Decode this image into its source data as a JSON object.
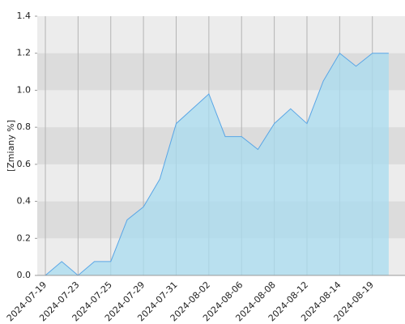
{
  "chart_data": {
    "type": "area",
    "y_label": "[Zmiany %]",
    "categories": [
      "2024-07-19",
      null,
      "2024-07-23",
      null,
      "2024-07-25",
      null,
      "2024-07-29",
      null,
      "2024-07-31",
      null,
      "2024-08-02",
      null,
      "2024-08-06",
      null,
      "2024-08-08",
      null,
      "2024-08-12",
      null,
      "2024-08-14",
      null,
      "2024-08-19",
      null
    ],
    "values": [
      0.0,
      0.075,
      0.0,
      0.075,
      0.075,
      0.3,
      0.37,
      0.52,
      0.82,
      0.9,
      0.98,
      0.75,
      0.75,
      0.68,
      0.82,
      0.9,
      0.82,
      1.05,
      1.2,
      1.13,
      1.2,
      1.2
    ],
    "color": "#5aa6e6",
    "ylim": [
      0,
      1.4
    ],
    "yticks": [
      {
        "value": 0,
        "label": "0.0"
      },
      0.2,
      0.4,
      0.6,
      0.8,
      {
        "value": 1,
        "label": "1.0"
      },
      1.2,
      1.4
    ],
    "grid": true
  }
}
